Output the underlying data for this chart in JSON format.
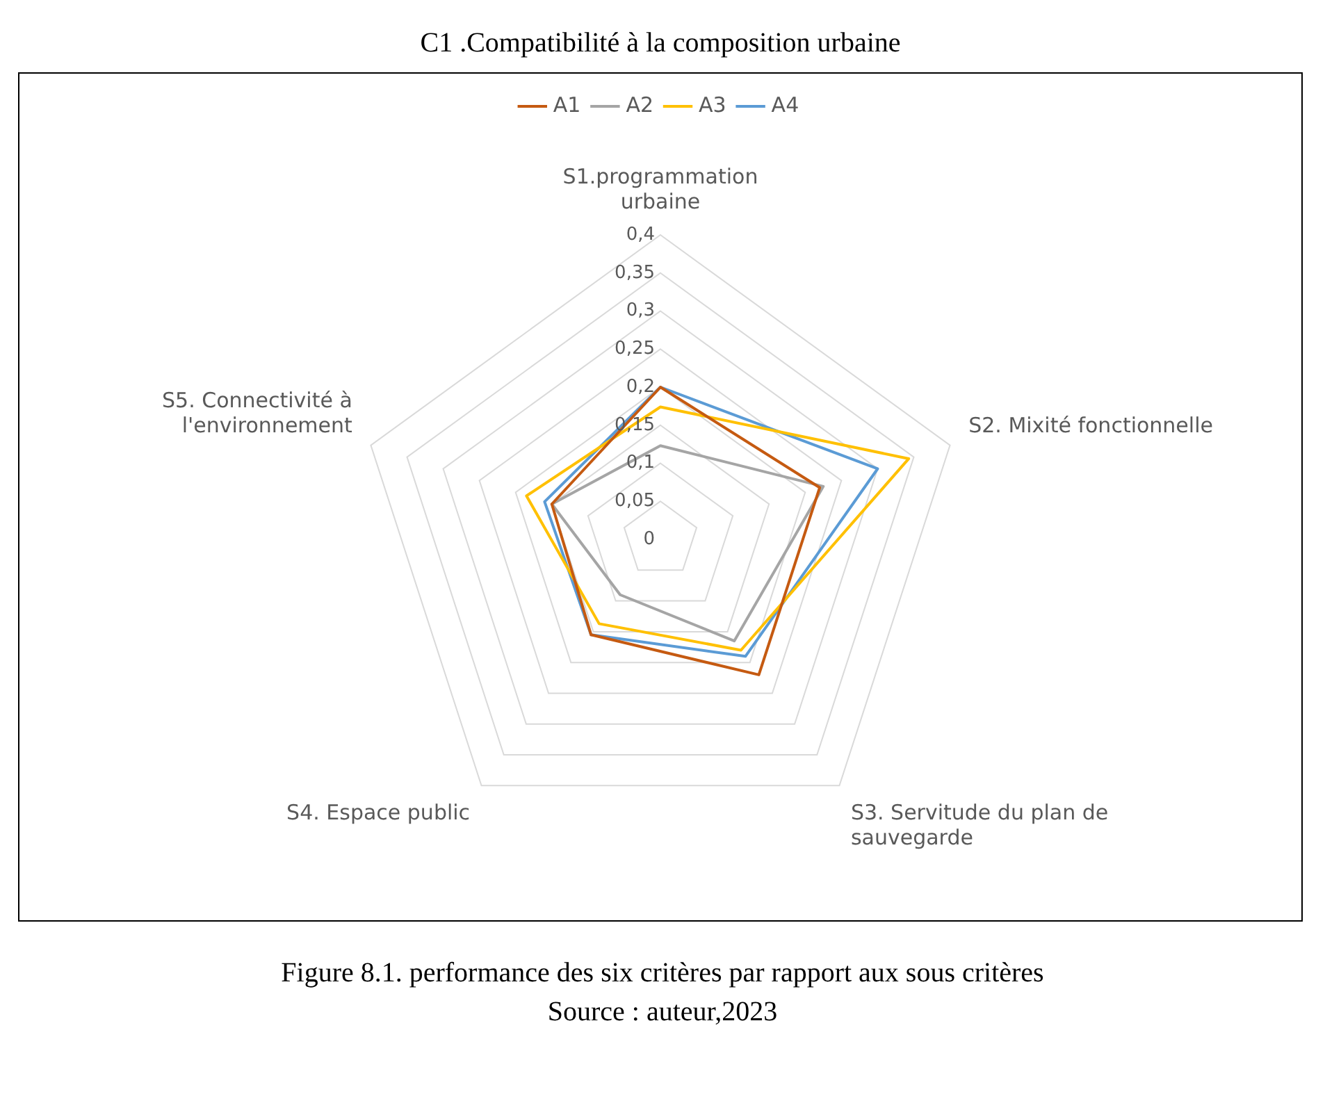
{
  "chart_data": {
    "type": "radar",
    "title": "C1 .Compatibilité à la composition urbaine",
    "categories": [
      "S1.programmation\nurbaine",
      "S2. Mixité fonctionnelle",
      "S3. Servitude du plan de\nsauvegarde",
      "S4. Espace public",
      "S5. Connectivité à\nl'environnement"
    ],
    "series": [
      {
        "name": "A1",
        "color": "#c55a11",
        "values": [
          0.2,
          0.22,
          0.22,
          0.155,
          0.15
        ]
      },
      {
        "name": "A2",
        "color": "#a5a5a5",
        "values": [
          0.123,
          0.225,
          0.165,
          0.09,
          0.15
        ]
      },
      {
        "name": "A3",
        "color": "#ffc000",
        "values": [
          0.174,
          0.343,
          0.18,
          0.137,
          0.185
        ]
      },
      {
        "name": "A4",
        "color": "#5b9bd5",
        "values": [
          0.2,
          0.3,
          0.19,
          0.155,
          0.16
        ]
      }
    ],
    "ylim": [
      0,
      0.4
    ],
    "yticks": [
      {
        "value": 0,
        "label": "0"
      },
      {
        "value": 0.05,
        "label": "0,05"
      },
      {
        "value": 0.1,
        "label": "0,1"
      },
      {
        "value": 0.15,
        "label": "0,15"
      },
      {
        "value": 0.2,
        "label": "0,2"
      },
      {
        "value": 0.25,
        "label": "0,25"
      },
      {
        "value": 0.3,
        "label": "0,3"
      },
      {
        "value": 0.35,
        "label": "0,35"
      },
      {
        "value": 0.4,
        "label": "0,4"
      }
    ],
    "grid": true,
    "legend": "top",
    "marker": "none",
    "line_style": "solid",
    "annotations": [
      "Figure 8.1. performance des six critères par rapport aux sous critères",
      "Source : auteur,2023"
    ]
  }
}
